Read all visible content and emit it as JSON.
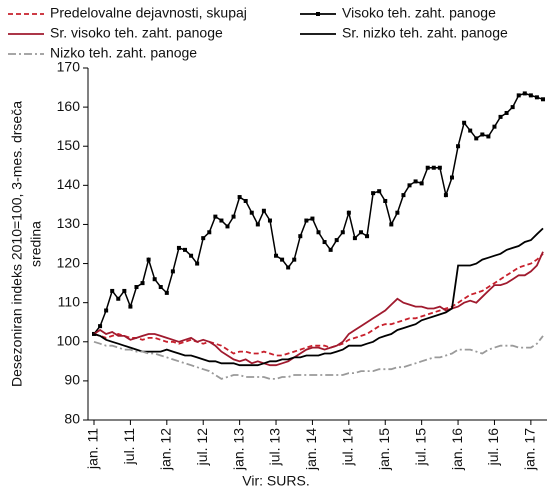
{
  "chart_data": {
    "type": "line",
    "ylabel": [
      "Desezoniran indeks 2010=100, 3-mes. drseča",
      "sredina"
    ],
    "source": "Vir: SURS.",
    "categories": [
      "jan. 11",
      null,
      null,
      null,
      null,
      null,
      "jul. 11",
      null,
      null,
      null,
      null,
      null,
      "jan. 12",
      null,
      null,
      null,
      null,
      null,
      "jul. 12",
      null,
      null,
      null,
      null,
      null,
      "jan. 13",
      null,
      null,
      null,
      null,
      null,
      "jul. 13",
      null,
      null,
      null,
      null,
      null,
      "jan. 14",
      null,
      null,
      null,
      null,
      null,
      "jul. 14",
      null,
      null,
      null,
      null,
      null,
      "jan. 15",
      null,
      null,
      null,
      null,
      null,
      "jul. 15",
      null,
      null,
      null,
      null,
      null,
      "jan. 16",
      null,
      null,
      null,
      null,
      null,
      "jul. 16",
      null,
      null,
      null,
      null,
      null,
      "jan. 17",
      null,
      null
    ],
    "ylim": [
      80,
      170
    ],
    "yticks": [
      80,
      90,
      100,
      110,
      120,
      130,
      140,
      150,
      160,
      170
    ],
    "grid": false,
    "legend": "top",
    "series": [
      {
        "name": "Predelovalne dejavnosti, skupaj",
        "color": "#c8202c",
        "dash": "dashed",
        "values": [
          102,
          101.5,
          101,
          101.5,
          102,
          101.5,
          101,
          101,
          100.5,
          101,
          101,
          100.5,
          100,
          100,
          99.5,
          100,
          100.5,
          100,
          99.5,
          100,
          99.5,
          99,
          98,
          97,
          97.5,
          97.5,
          97,
          97,
          97.5,
          97,
          96.5,
          96.5,
          97,
          97.5,
          98,
          98.5,
          99,
          99,
          99,
          98.5,
          99,
          99.5,
          100.5,
          101,
          101.5,
          102,
          103,
          104,
          104.5,
          104.5,
          105,
          105.5,
          106,
          106,
          106.5,
          107,
          107.5,
          108,
          108.5,
          109,
          110,
          111,
          112,
          112.5,
          113,
          114,
          115,
          116,
          117,
          118,
          119,
          119.5,
          120,
          121,
          122.5
        ]
      },
      {
        "name": "Visoko teh. zaht. panoge",
        "color": "#000000",
        "dash": "solid",
        "marker": "square",
        "values": [
          102,
          104,
          108,
          113,
          111,
          113,
          109,
          114,
          115,
          121,
          116,
          114,
          112.5,
          118,
          124,
          123.5,
          122,
          120,
          126.5,
          128,
          132,
          131,
          129.5,
          132,
          137,
          136,
          133,
          130,
          133.5,
          131,
          122,
          121,
          119,
          121,
          127,
          131,
          131.5,
          128,
          125.5,
          123.5,
          126,
          128,
          133,
          126.5,
          128,
          127,
          138,
          138.5,
          136,
          130,
          133,
          137.5,
          140,
          141,
          140.5,
          144.5,
          144.5,
          144.5,
          137.5,
          142,
          150,
          156,
          154,
          152,
          153,
          152.5,
          155,
          157.5,
          158.5,
          160,
          163,
          163.5,
          163,
          162.5,
          162
        ]
      },
      {
        "name": "Sr. visoko teh. zaht. panoge",
        "color": "#a01a2e",
        "dash": "solid",
        "values": [
          102,
          103,
          102,
          102.5,
          101.5,
          101.5,
          100.5,
          101,
          101.5,
          102,
          102,
          101.5,
          101,
          100.5,
          100,
          100.5,
          101,
          100,
          100.5,
          100,
          99,
          97.5,
          96.5,
          95.5,
          95,
          95.5,
          94.5,
          95,
          94.5,
          94,
          94,
          94.5,
          95,
          96,
          97,
          98,
          98.5,
          98.5,
          98,
          98.5,
          99,
          100,
          102,
          103,
          104,
          105,
          106,
          107,
          108,
          109.5,
          111,
          110,
          109.5,
          109,
          109,
          108.5,
          108.5,
          109,
          108,
          108.5,
          109,
          110,
          110.5,
          110,
          111.5,
          113,
          114.5,
          114.5,
          115,
          116,
          117,
          117,
          118,
          119.5,
          123
        ]
      },
      {
        "name": "Sr. nizko teh. zaht. panoge",
        "color": "#000000",
        "dash": "solid",
        "values": [
          102,
          101.5,
          100.5,
          100,
          99.5,
          99,
          98.5,
          98,
          97.5,
          97.5,
          97.5,
          97.5,
          98,
          97.5,
          97,
          96.5,
          96.5,
          96,
          95.5,
          95,
          95,
          94.5,
          94.5,
          94.5,
          94,
          94,
          94,
          94,
          94.5,
          95,
          95,
          95.5,
          95.5,
          96,
          96,
          96.5,
          96.5,
          96.5,
          97,
          97,
          97.5,
          98,
          99,
          99,
          99,
          99.5,
          100,
          101,
          101.5,
          102,
          103,
          103.5,
          104,
          104.5,
          105.5,
          106,
          106.5,
          107,
          107.5,
          108.5,
          119.5,
          119.5,
          119.5,
          120,
          121,
          121.5,
          122,
          122.5,
          123.5,
          124,
          124.5,
          125.5,
          126,
          127.5,
          129
        ]
      },
      {
        "name": "Nizko teh. zaht. panoge",
        "color": "#9a9a9a",
        "dash": "dashdot",
        "values": [
          100,
          99.5,
          99,
          99,
          98.5,
          98,
          98,
          97.5,
          97.5,
          97,
          97,
          96.5,
          96,
          95.5,
          95,
          94.5,
          94,
          93.5,
          93,
          92.5,
          91.5,
          90.5,
          91,
          91.5,
          91.5,
          91,
          91,
          91,
          91,
          90.5,
          90.5,
          91,
          91,
          91.5,
          91.5,
          91.5,
          91.5,
          91.5,
          91.5,
          91.5,
          91.5,
          91.5,
          92,
          92,
          92.5,
          92.5,
          92.5,
          93,
          93,
          93,
          93.5,
          93.5,
          94,
          94.5,
          95,
          95.5,
          96,
          96,
          96.5,
          97,
          98,
          98,
          98,
          97.5,
          97,
          98,
          98.5,
          99,
          99,
          99,
          98.5,
          98.5,
          98.5,
          99.5,
          101.5
        ]
      }
    ]
  }
}
